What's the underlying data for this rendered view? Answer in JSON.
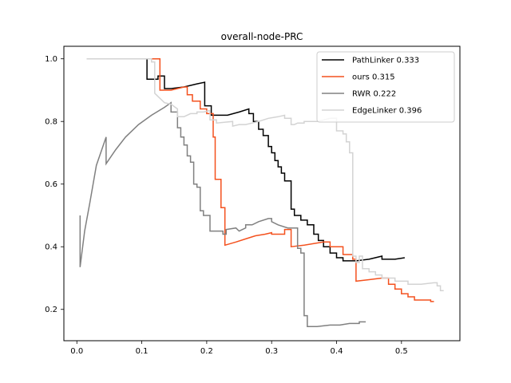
{
  "chart_data": {
    "type": "line",
    "title": "overall-node-PRC",
    "xlabel": "",
    "ylabel": "",
    "xlim": [
      -0.02,
      0.59
    ],
    "ylim": [
      0.1,
      1.04
    ],
    "xticks": [
      0.0,
      0.1,
      0.2,
      0.3,
      0.4,
      0.5
    ],
    "xtick_labels": [
      "0.0",
      "0.1",
      "0.2",
      "0.3",
      "0.4",
      "0.5"
    ],
    "yticks": [
      0.2,
      0.4,
      0.6,
      0.8,
      1.0
    ],
    "ytick_labels": [
      "0.2",
      "0.4",
      "0.6",
      "0.8",
      "1.0"
    ],
    "grid": false,
    "legend_position": "top-right",
    "series": [
      {
        "name": "PathLinker 0.333",
        "color": "#000000",
        "points": [
          [
            0.015,
            1.0
          ],
          [
            0.108,
            1.0
          ],
          [
            0.108,
            0.935
          ],
          [
            0.125,
            0.935
          ],
          [
            0.125,
            0.945
          ],
          [
            0.135,
            0.945
          ],
          [
            0.135,
            0.905
          ],
          [
            0.145,
            0.905
          ],
          [
            0.165,
            0.91
          ],
          [
            0.185,
            0.92
          ],
          [
            0.197,
            0.925
          ],
          [
            0.197,
            0.85
          ],
          [
            0.207,
            0.85
          ],
          [
            0.207,
            0.82
          ],
          [
            0.232,
            0.82
          ],
          [
            0.25,
            0.83
          ],
          [
            0.265,
            0.84
          ],
          [
            0.265,
            0.825
          ],
          [
            0.272,
            0.825
          ],
          [
            0.272,
            0.8
          ],
          [
            0.28,
            0.8
          ],
          [
            0.28,
            0.775
          ],
          [
            0.287,
            0.775
          ],
          [
            0.287,
            0.755
          ],
          [
            0.295,
            0.755
          ],
          [
            0.295,
            0.72
          ],
          [
            0.3,
            0.72
          ],
          [
            0.3,
            0.7
          ],
          [
            0.305,
            0.7
          ],
          [
            0.305,
            0.675
          ],
          [
            0.31,
            0.675
          ],
          [
            0.31,
            0.655
          ],
          [
            0.315,
            0.655
          ],
          [
            0.315,
            0.635
          ],
          [
            0.32,
            0.635
          ],
          [
            0.32,
            0.61
          ],
          [
            0.33,
            0.61
          ],
          [
            0.33,
            0.52
          ],
          [
            0.335,
            0.52
          ],
          [
            0.335,
            0.5
          ],
          [
            0.345,
            0.5
          ],
          [
            0.345,
            0.485
          ],
          [
            0.355,
            0.485
          ],
          [
            0.355,
            0.47
          ],
          [
            0.365,
            0.47
          ],
          [
            0.365,
            0.44
          ],
          [
            0.372,
            0.44
          ],
          [
            0.372,
            0.42
          ],
          [
            0.38,
            0.42
          ],
          [
            0.38,
            0.4
          ],
          [
            0.39,
            0.4
          ],
          [
            0.39,
            0.38
          ],
          [
            0.4,
            0.38
          ],
          [
            0.4,
            0.365
          ],
          [
            0.41,
            0.365
          ],
          [
            0.41,
            0.355
          ],
          [
            0.43,
            0.355
          ],
          [
            0.45,
            0.36
          ],
          [
            0.47,
            0.37
          ],
          [
            0.47,
            0.36
          ],
          [
            0.49,
            0.36
          ],
          [
            0.505,
            0.365
          ]
        ]
      },
      {
        "name": "ours 0.315",
        "color": "#f4511e",
        "points": [
          [
            0.015,
            1.0
          ],
          [
            0.128,
            1.0
          ],
          [
            0.128,
            0.9
          ],
          [
            0.145,
            0.9
          ],
          [
            0.165,
            0.91
          ],
          [
            0.17,
            0.91
          ],
          [
            0.17,
            0.885
          ],
          [
            0.178,
            0.885
          ],
          [
            0.178,
            0.865
          ],
          [
            0.19,
            0.865
          ],
          [
            0.19,
            0.84
          ],
          [
            0.2,
            0.84
          ],
          [
            0.2,
            0.825
          ],
          [
            0.21,
            0.825
          ],
          [
            0.21,
            0.75
          ],
          [
            0.213,
            0.75
          ],
          [
            0.213,
            0.615
          ],
          [
            0.222,
            0.615
          ],
          [
            0.222,
            0.525
          ],
          [
            0.228,
            0.525
          ],
          [
            0.228,
            0.405
          ],
          [
            0.245,
            0.415
          ],
          [
            0.26,
            0.425
          ],
          [
            0.275,
            0.435
          ],
          [
            0.29,
            0.44
          ],
          [
            0.3,
            0.445
          ],
          [
            0.3,
            0.44
          ],
          [
            0.32,
            0.44
          ],
          [
            0.32,
            0.455
          ],
          [
            0.33,
            0.455
          ],
          [
            0.33,
            0.4
          ],
          [
            0.35,
            0.405
          ],
          [
            0.365,
            0.41
          ],
          [
            0.38,
            0.415
          ],
          [
            0.39,
            0.415
          ],
          [
            0.39,
            0.4
          ],
          [
            0.41,
            0.4
          ],
          [
            0.41,
            0.375
          ],
          [
            0.425,
            0.375
          ],
          [
            0.425,
            0.36
          ],
          [
            0.43,
            0.36
          ],
          [
            0.43,
            0.29
          ],
          [
            0.45,
            0.295
          ],
          [
            0.47,
            0.3
          ],
          [
            0.48,
            0.3
          ],
          [
            0.48,
            0.28
          ],
          [
            0.49,
            0.28
          ],
          [
            0.49,
            0.265
          ],
          [
            0.5,
            0.265
          ],
          [
            0.5,
            0.25
          ],
          [
            0.51,
            0.25
          ],
          [
            0.51,
            0.24
          ],
          [
            0.52,
            0.24
          ],
          [
            0.52,
            0.23
          ],
          [
            0.545,
            0.23
          ],
          [
            0.545,
            0.225
          ],
          [
            0.55,
            0.225
          ]
        ]
      },
      {
        "name": "RWR 0.222",
        "color": "#808080",
        "points": [
          [
            0.005,
            0.5
          ],
          [
            0.005,
            0.335
          ],
          [
            0.012,
            0.45
          ],
          [
            0.02,
            0.54
          ],
          [
            0.03,
            0.66
          ],
          [
            0.045,
            0.75
          ],
          [
            0.045,
            0.665
          ],
          [
            0.06,
            0.71
          ],
          [
            0.075,
            0.75
          ],
          [
            0.095,
            0.79
          ],
          [
            0.115,
            0.82
          ],
          [
            0.135,
            0.845
          ],
          [
            0.145,
            0.86
          ],
          [
            0.145,
            0.83
          ],
          [
            0.155,
            0.83
          ],
          [
            0.155,
            0.78
          ],
          [
            0.16,
            0.78
          ],
          [
            0.16,
            0.75
          ],
          [
            0.165,
            0.75
          ],
          [
            0.165,
            0.725
          ],
          [
            0.17,
            0.725
          ],
          [
            0.17,
            0.69
          ],
          [
            0.175,
            0.69
          ],
          [
            0.175,
            0.67
          ],
          [
            0.18,
            0.67
          ],
          [
            0.18,
            0.6
          ],
          [
            0.185,
            0.6
          ],
          [
            0.185,
            0.59
          ],
          [
            0.19,
            0.59
          ],
          [
            0.19,
            0.515
          ],
          [
            0.195,
            0.515
          ],
          [
            0.195,
            0.5
          ],
          [
            0.205,
            0.5
          ],
          [
            0.205,
            0.45
          ],
          [
            0.225,
            0.45
          ],
          [
            0.225,
            0.44
          ],
          [
            0.23,
            0.44
          ],
          [
            0.23,
            0.455
          ],
          [
            0.245,
            0.46
          ],
          [
            0.25,
            0.45
          ],
          [
            0.26,
            0.46
          ],
          [
            0.26,
            0.47
          ],
          [
            0.27,
            0.47
          ],
          [
            0.28,
            0.48
          ],
          [
            0.295,
            0.49
          ],
          [
            0.3,
            0.49
          ],
          [
            0.3,
            0.48
          ],
          [
            0.31,
            0.47
          ],
          [
            0.325,
            0.46
          ],
          [
            0.34,
            0.46
          ],
          [
            0.34,
            0.395
          ],
          [
            0.345,
            0.395
          ],
          [
            0.345,
            0.38
          ],
          [
            0.35,
            0.38
          ],
          [
            0.35,
            0.33
          ],
          [
            0.35,
            0.3
          ],
          [
            0.35,
            0.18
          ],
          [
            0.355,
            0.18
          ],
          [
            0.355,
            0.145
          ],
          [
            0.37,
            0.145
          ],
          [
            0.39,
            0.15
          ],
          [
            0.405,
            0.15
          ],
          [
            0.42,
            0.155
          ],
          [
            0.435,
            0.155
          ],
          [
            0.435,
            0.16
          ],
          [
            0.445,
            0.16
          ]
        ]
      },
      {
        "name": "EdgeLinker 0.396",
        "color": "#d3d3d3",
        "points": [
          [
            0.015,
            1.0
          ],
          [
            0.115,
            1.0
          ],
          [
            0.115,
            0.99
          ],
          [
            0.12,
            0.99
          ],
          [
            0.12,
            0.89
          ],
          [
            0.135,
            0.86
          ],
          [
            0.145,
            0.855
          ],
          [
            0.155,
            0.84
          ],
          [
            0.155,
            0.815
          ],
          [
            0.165,
            0.815
          ],
          [
            0.175,
            0.825
          ],
          [
            0.185,
            0.825
          ],
          [
            0.185,
            0.83
          ],
          [
            0.195,
            0.83
          ],
          [
            0.205,
            0.835
          ],
          [
            0.205,
            0.805
          ],
          [
            0.215,
            0.805
          ],
          [
            0.215,
            0.795
          ],
          [
            0.24,
            0.8
          ],
          [
            0.24,
            0.785
          ],
          [
            0.25,
            0.79
          ],
          [
            0.26,
            0.79
          ],
          [
            0.27,
            0.795
          ],
          [
            0.28,
            0.8
          ],
          [
            0.295,
            0.81
          ],
          [
            0.31,
            0.815
          ],
          [
            0.32,
            0.82
          ],
          [
            0.32,
            0.81
          ],
          [
            0.33,
            0.81
          ],
          [
            0.33,
            0.79
          ],
          [
            0.335,
            0.79
          ],
          [
            0.34,
            0.795
          ],
          [
            0.35,
            0.795
          ],
          [
            0.35,
            0.8
          ],
          [
            0.37,
            0.8
          ],
          [
            0.38,
            0.805
          ],
          [
            0.39,
            0.81
          ],
          [
            0.4,
            0.81
          ],
          [
            0.4,
            0.77
          ],
          [
            0.41,
            0.77
          ],
          [
            0.41,
            0.76
          ],
          [
            0.415,
            0.76
          ],
          [
            0.415,
            0.735
          ],
          [
            0.42,
            0.735
          ],
          [
            0.42,
            0.7
          ],
          [
            0.425,
            0.7
          ],
          [
            0.425,
            0.37
          ],
          [
            0.43,
            0.37
          ],
          [
            0.43,
            0.35
          ],
          [
            0.435,
            0.35
          ],
          [
            0.435,
            0.37
          ],
          [
            0.44,
            0.37
          ],
          [
            0.44,
            0.33
          ],
          [
            0.45,
            0.33
          ],
          [
            0.45,
            0.32
          ],
          [
            0.46,
            0.32
          ],
          [
            0.46,
            0.31
          ],
          [
            0.47,
            0.31
          ],
          [
            0.47,
            0.3
          ],
          [
            0.49,
            0.3
          ],
          [
            0.49,
            0.29
          ],
          [
            0.51,
            0.29
          ],
          [
            0.51,
            0.28
          ],
          [
            0.53,
            0.28
          ],
          [
            0.55,
            0.285
          ],
          [
            0.555,
            0.285
          ],
          [
            0.555,
            0.275
          ],
          [
            0.56,
            0.275
          ],
          [
            0.56,
            0.26
          ],
          [
            0.565,
            0.26
          ]
        ]
      }
    ]
  }
}
